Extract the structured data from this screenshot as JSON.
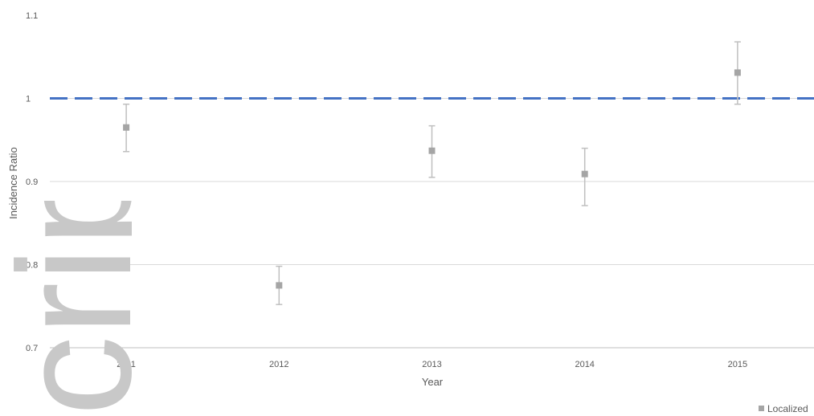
{
  "chart_data": {
    "type": "scatter",
    "title": "",
    "xlabel": "Year",
    "ylabel": "Incidence Ratio",
    "categories": [
      "2011",
      "2012",
      "2013",
      "2014",
      "2015"
    ],
    "series": [
      {
        "name": "Localized",
        "color": "#a5a5a5",
        "values": [
          0.965,
          0.775,
          0.937,
          0.909,
          1.031
        ],
        "lower": [
          0.936,
          0.752,
          0.905,
          0.871,
          0.993
        ],
        "upper": [
          0.993,
          0.798,
          0.967,
          0.94,
          1.068
        ]
      }
    ],
    "reference_line": {
      "y": 1.0,
      "color": "#4472c4",
      "style": "dashed"
    },
    "yticks": [
      "0.7",
      "0.8",
      "0.9",
      "1",
      "1.1"
    ],
    "ylim": [
      0.7,
      1.1
    ],
    "grid": true,
    "legend": "bottom-right"
  }
}
